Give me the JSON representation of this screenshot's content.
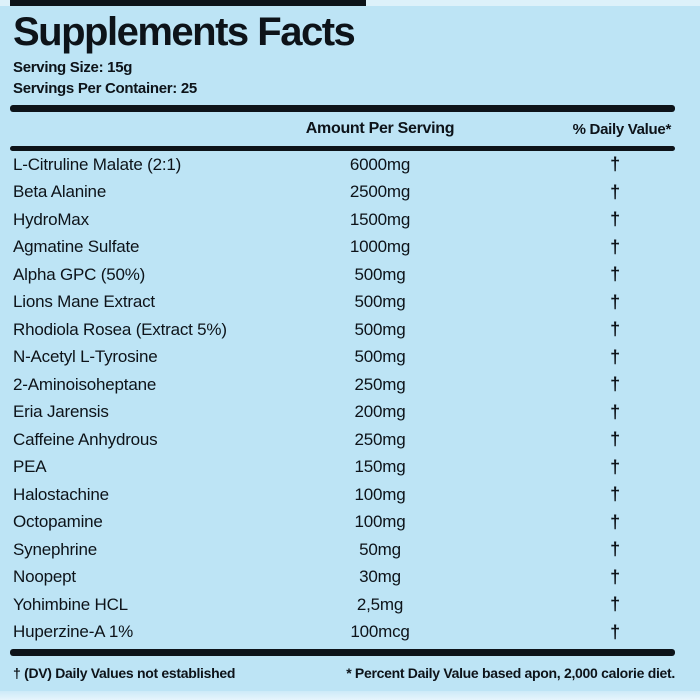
{
  "label": {
    "title": "Supplements Facts",
    "serving_size": "Serving Size: 15g",
    "servings_per_container": "Servings Per Container: 25",
    "columns": {
      "amount": "Amount Per Serving",
      "daily_value": "% Daily Value*"
    },
    "rows": [
      {
        "name": "L-Citruline Malate (2:1)",
        "amount": "6000mg",
        "dv": "†"
      },
      {
        "name": "Beta Alanine",
        "amount": "2500mg",
        "dv": "†"
      },
      {
        "name": "HydroMax",
        "amount": "1500mg",
        "dv": "†"
      },
      {
        "name": "Agmatine Sulfate",
        "amount": "1000mg",
        "dv": "†"
      },
      {
        "name": "Alpha GPC (50%)",
        "amount": "500mg",
        "dv": "†"
      },
      {
        "name": "Lions Mane Extract",
        "amount": "500mg",
        "dv": "†"
      },
      {
        "name": "Rhodiola Rosea (Extract 5%)",
        "amount": "500mg",
        "dv": "†"
      },
      {
        "name": "N-Acetyl L-Tyrosine",
        "amount": "500mg",
        "dv": "†"
      },
      {
        "name": "2-Aminoisoheptane",
        "amount": "250mg",
        "dv": "†"
      },
      {
        "name": "Eria Jarensis",
        "amount": "200mg",
        "dv": "†"
      },
      {
        "name": "Caffeine Anhydrous",
        "amount": "250mg",
        "dv": "†"
      },
      {
        "name": "PEA",
        "amount": "150mg",
        "dv": "†"
      },
      {
        "name": "Halostachine",
        "amount": "100mg",
        "dv": "†"
      },
      {
        "name": "Octopamine",
        "amount": "100mg",
        "dv": "†"
      },
      {
        "name": "Synephrine",
        "amount": "50mg",
        "dv": "†"
      },
      {
        "name": "Noopept",
        "amount": "30mg",
        "dv": "†"
      },
      {
        "name": "Yohimbine HCL",
        "amount": "2,5mg",
        "dv": "†"
      },
      {
        "name": "Huperzine-A 1%",
        "amount": "100mcg",
        "dv": "†"
      }
    ],
    "footnotes": {
      "left": "† (DV) Daily Values not established",
      "right": "* Percent Daily Value based apon, 2,000 calorie diet."
    },
    "colors": {
      "background": "#bde4f5",
      "text": "#0d1319",
      "rule": "#0d1319"
    }
  }
}
